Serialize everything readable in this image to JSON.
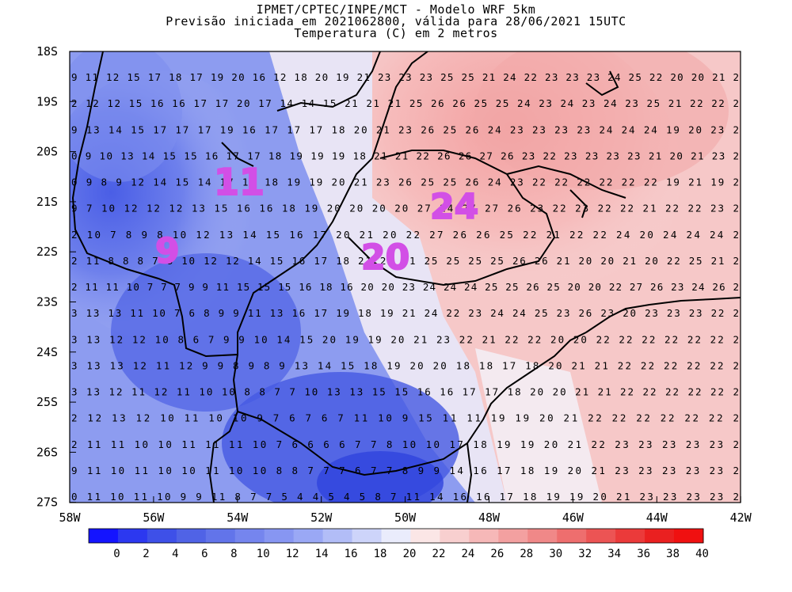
{
  "header": {
    "line1": "IPMET/CPTEC/INPE/MCT - Modelo WRF 5km",
    "line2": "Previsão iniciada em 2021062800, válida para 28/06/2021 15UTC",
    "line3": "Temperatura (C) em 2 metros"
  },
  "map": {
    "lat_labels": [
      "18S",
      "19S",
      "20S",
      "21S",
      "22S",
      "23S",
      "24S",
      "25S",
      "26S",
      "27S"
    ],
    "lon_labels": [
      "58W",
      "56W",
      "54W",
      "52W",
      "50W",
      "48W",
      "46W",
      "44W",
      "42W"
    ],
    "temperature_grid": [
      "9 11 12 15 17 18 17 19 20 16 12 18 20 19 21 23 23 23 25 25 21 24 22 23 23 23 24 25 22 20 20 21 2",
      "2 12 12 15 16 16 17 17 20 17 14 14 15 21 21 21 25 26 26 25 25 24 23 24 23 24 23 25 21 22 22 2",
      "9 13 14 15 17 17 17 19 16 17 17 17 18 20 21 23 26 25 26 24 23 23 23 23 24 24 24 19 20 23 2",
      "0 9 10 13 14 15 15 16 17 17 18 19 19 19 18 21 21 22 26 26 27 26 23 22 23 23 23 23 21 20 21 23 2",
      "0 9 8 9 12 14 15 14 17 18 18 19 19 20 21 23 26 25 25 26 24 23 22 22 22 22 22 22 19 21 19 2",
      "9 7 10 12 12 12 13 15 16 16 18 19 20 20 20 20 27 24 27 27 26 23 22 23 22 22 21 22 22 23 2",
      "2 10 7 8 9 8 10 12 13 14 15 16 17 20 21 20 22 27 26 26 25 22 21 22 22 24 20 24 24 24 2",
      "2 11 8 8 8 7 8 10 12 12 14 15 16 17 18 21 22 21 25 25 25 25 26 26 21 20 20 21 20 22 25 21 2",
      "2 11 11 10 7 7 7 9 9 11 15 15 15 16 18 16 20 20 23 24 24 24 25 25 26 25 20 20 22 27 26 23 24 26 2",
      "3 13 13 11 10 7 6 8 9 9 11 13 16 17 19 18 19 21 24 22 23 24 24 25 23 26 23 20 23 23 23 22 2",
      "3 13 12 12 10 8 6 7 9 9 10 14 15 20 19 19 20 21 23 22 21 22 22 20 20 22 22 22 22 22 22 2",
      "3 13 13 12 11 12 9 9 8 9 8 9 13 14 15 18 19 20 20 18 18 17 18 20 21 21 22 22 22 22 22 2",
      "3 13 12 11 12 11 10 10 8 8 7 7 10 13 13 15 15 16 16 17 17 18 20 20 21 21 22 22 22 22 22 2",
      "2 12 13 12 10 11 10 10 9 7 6 7 6 7 11 10 9 15 11 11 19 19 20 21 22 22 22 22 22 22 2",
      "2 11 11 10 10 11 11 11 10 7 6 6 6 6 7 7 8 10 10 17 18 19 19 20 21 22 23 23 23 23 23 2",
      "9 11 10 11 10 10 11 10 10 8 8 7 7 7 6 7 7 8 9 9 14 16 17 18 19 20 21 23 23 23 23 23 2",
      "0 11 10 11 10 9 9 11 8 7 7 5 4 4 5 4 5 8 7 11 14 16 16 17 18 19 19 20 21 23 23 23 23 2"
    ],
    "annotations": [
      "11",
      "9",
      "20",
      "24"
    ]
  },
  "colorbar": {
    "labels": [
      "0",
      "2",
      "4",
      "6",
      "8",
      "10",
      "12",
      "14",
      "16",
      "18",
      "20",
      "22",
      "24",
      "26",
      "28",
      "30",
      "32",
      "34",
      "36",
      "38",
      "40"
    ],
    "colors": [
      "#1414ff",
      "#2c38f0",
      "#3e50e8",
      "#5063e6",
      "#6274ea",
      "#7585ee",
      "#8796f2",
      "#9aa8f5",
      "#b2bdf7",
      "#cdd4fa",
      "#eaecfc",
      "#fbe6e6",
      "#f8cfcf",
      "#f6b8b8",
      "#f3a0a0",
      "#f08888",
      "#ee6e6e",
      "#ec5454",
      "#eb3a3a",
      "#ea2020",
      "#f01010"
    ]
  }
}
